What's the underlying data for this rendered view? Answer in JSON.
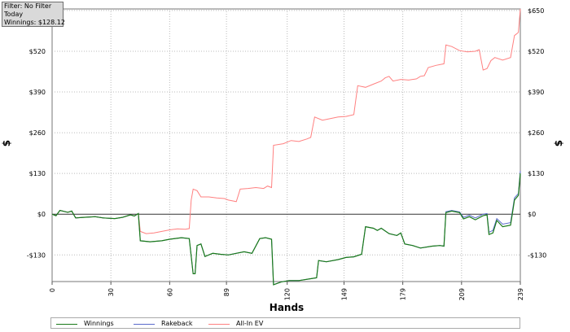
{
  "info_box": {
    "filter": "Filter: No Filter",
    "period": "Today",
    "winnings": "Winnings: $128.12"
  },
  "chart_data": {
    "type": "line",
    "xlabel": "Hands",
    "ylabel": "$",
    "xlim": [
      0,
      239
    ],
    "ylim": [
      -215,
      655
    ],
    "x_ticks": [
      0,
      30,
      60,
      89,
      120,
      149,
      179,
      209,
      239
    ],
    "y_ticks": [
      {
        "value": 650,
        "label": "$650"
      },
      {
        "value": 520,
        "label": "$520"
      },
      {
        "value": 390,
        "label": "$390"
      },
      {
        "value": 260,
        "label": "$260"
      },
      {
        "value": 130,
        "label": "$130"
      },
      {
        "value": 0,
        "label": "$0"
      },
      {
        "value": -130,
        "label": "-$130"
      }
    ],
    "grid": true,
    "legend_position": "bottom",
    "series": [
      {
        "name": "Winnings",
        "color": "#1a7a1a",
        "points": [
          [
            0,
            0
          ],
          [
            2,
            -5
          ],
          [
            4,
            12
          ],
          [
            8,
            6
          ],
          [
            10,
            10
          ],
          [
            12,
            -12
          ],
          [
            16,
            -10
          ],
          [
            22,
            -8
          ],
          [
            26,
            -12
          ],
          [
            32,
            -14
          ],
          [
            36,
            -10
          ],
          [
            40,
            -2
          ],
          [
            42,
            -6
          ],
          [
            44,
            2
          ],
          [
            45,
            -85
          ],
          [
            50,
            -88
          ],
          [
            56,
            -85
          ],
          [
            60,
            -80
          ],
          [
            66,
            -75
          ],
          [
            70,
            -78
          ],
          [
            72,
            -190
          ],
          [
            73,
            -190
          ],
          [
            74,
            -100
          ],
          [
            76,
            -95
          ],
          [
            78,
            -135
          ],
          [
            82,
            -125
          ],
          [
            86,
            -128
          ],
          [
            90,
            -130
          ],
          [
            94,
            -125
          ],
          [
            98,
            -120
          ],
          [
            102,
            -125
          ],
          [
            106,
            -78
          ],
          [
            109,
            -75
          ],
          [
            112,
            -80
          ],
          [
            113,
            -225
          ],
          [
            117,
            -216
          ],
          [
            121,
            -212
          ],
          [
            126,
            -212
          ],
          [
            132,
            -206
          ],
          [
            135,
            -203
          ],
          [
            136,
            -148
          ],
          [
            140,
            -152
          ],
          [
            146,
            -145
          ],
          [
            150,
            -138
          ],
          [
            154,
            -136
          ],
          [
            156,
            -132
          ],
          [
            158,
            -128
          ],
          [
            160,
            -40
          ],
          [
            164,
            -45
          ],
          [
            166,
            -52
          ],
          [
            168,
            -45
          ],
          [
            172,
            -62
          ],
          [
            176,
            -68
          ],
          [
            178,
            -60
          ],
          [
            180,
            -95
          ],
          [
            184,
            -100
          ],
          [
            188,
            -108
          ],
          [
            194,
            -102
          ],
          [
            198,
            -100
          ],
          [
            200,
            -102
          ],
          [
            201,
            5
          ],
          [
            204,
            10
          ],
          [
            208,
            5
          ],
          [
            210,
            -15
          ],
          [
            213,
            -8
          ],
          [
            216,
            -18
          ],
          [
            220,
            -5
          ],
          [
            222,
            -2
          ],
          [
            223,
            -65
          ],
          [
            225,
            -60
          ],
          [
            227,
            -20
          ],
          [
            230,
            -40
          ],
          [
            234,
            -35
          ],
          [
            236,
            45
          ],
          [
            238,
            60
          ],
          [
            239,
            130
          ]
        ]
      },
      {
        "name": "Rakeback",
        "color": "#5a6acc",
        "points": [
          [
            0,
            0
          ],
          [
            2,
            -5
          ],
          [
            4,
            12
          ],
          [
            8,
            6
          ],
          [
            10,
            10
          ],
          [
            12,
            -12
          ],
          [
            16,
            -10
          ],
          [
            22,
            -8
          ],
          [
            26,
            -12
          ],
          [
            32,
            -14
          ],
          [
            36,
            -10
          ],
          [
            40,
            -2
          ],
          [
            42,
            -6
          ],
          [
            44,
            2
          ],
          [
            45,
            -85
          ],
          [
            50,
            -88
          ],
          [
            56,
            -85
          ],
          [
            60,
            -80
          ],
          [
            66,
            -75
          ],
          [
            70,
            -78
          ],
          [
            72,
            -190
          ],
          [
            73,
            -190
          ],
          [
            74,
            -100
          ],
          [
            76,
            -95
          ],
          [
            78,
            -135
          ],
          [
            82,
            -125
          ],
          [
            86,
            -128
          ],
          [
            90,
            -130
          ],
          [
            94,
            -125
          ],
          [
            98,
            -120
          ],
          [
            102,
            -125
          ],
          [
            106,
            -78
          ],
          [
            109,
            -75
          ],
          [
            112,
            -80
          ],
          [
            113,
            -225
          ],
          [
            117,
            -216
          ],
          [
            121,
            -212
          ],
          [
            126,
            -212
          ],
          [
            132,
            -206
          ],
          [
            135,
            -203
          ],
          [
            136,
            -148
          ],
          [
            140,
            -152
          ],
          [
            146,
            -145
          ],
          [
            150,
            -138
          ],
          [
            154,
            -136
          ],
          [
            156,
            -132
          ],
          [
            158,
            -128
          ],
          [
            160,
            -40
          ],
          [
            164,
            -45
          ],
          [
            166,
            -52
          ],
          [
            168,
            -45
          ],
          [
            172,
            -62
          ],
          [
            176,
            -68
          ],
          [
            178,
            -60
          ],
          [
            180,
            -95
          ],
          [
            184,
            -100
          ],
          [
            188,
            -108
          ],
          [
            194,
            -102
          ],
          [
            198,
            -100
          ],
          [
            200,
            -102
          ],
          [
            201,
            8
          ],
          [
            204,
            12
          ],
          [
            208,
            7
          ],
          [
            210,
            -10
          ],
          [
            213,
            -3
          ],
          [
            216,
            -12
          ],
          [
            220,
            0
          ],
          [
            222,
            2
          ],
          [
            223,
            -58
          ],
          [
            225,
            -52
          ],
          [
            227,
            -14
          ],
          [
            230,
            -32
          ],
          [
            234,
            -27
          ],
          [
            236,
            52
          ],
          [
            238,
            66
          ],
          [
            239,
            138
          ]
        ]
      },
      {
        "name": "All-In EV",
        "color": "#ff8080",
        "points": [
          [
            0,
            0
          ],
          [
            2,
            -5
          ],
          [
            4,
            12
          ],
          [
            8,
            6
          ],
          [
            10,
            10
          ],
          [
            12,
            -12
          ],
          [
            16,
            -10
          ],
          [
            22,
            -8
          ],
          [
            26,
            -12
          ],
          [
            32,
            -14
          ],
          [
            36,
            -10
          ],
          [
            40,
            -2
          ],
          [
            42,
            -6
          ],
          [
            44,
            2
          ],
          [
            45,
            -55
          ],
          [
            48,
            -62
          ],
          [
            52,
            -60
          ],
          [
            56,
            -55
          ],
          [
            60,
            -50
          ],
          [
            64,
            -47
          ],
          [
            68,
            -48
          ],
          [
            70,
            -46
          ],
          [
            71,
            45
          ],
          [
            72,
            80
          ],
          [
            74,
            75
          ],
          [
            76,
            55
          ],
          [
            80,
            55
          ],
          [
            84,
            52
          ],
          [
            88,
            50
          ],
          [
            90,
            45
          ],
          [
            94,
            40
          ],
          [
            96,
            80
          ],
          [
            100,
            82
          ],
          [
            104,
            85
          ],
          [
            108,
            82
          ],
          [
            110,
            90
          ],
          [
            112,
            85
          ],
          [
            113,
            220
          ],
          [
            118,
            225
          ],
          [
            122,
            235
          ],
          [
            126,
            232
          ],
          [
            130,
            240
          ],
          [
            132,
            245
          ],
          [
            134,
            310
          ],
          [
            138,
            300
          ],
          [
            142,
            305
          ],
          [
            146,
            310
          ],
          [
            150,
            312
          ],
          [
            154,
            318
          ],
          [
            156,
            410
          ],
          [
            160,
            405
          ],
          [
            164,
            415
          ],
          [
            168,
            425
          ],
          [
            170,
            435
          ],
          [
            172,
            440
          ],
          [
            174,
            425
          ],
          [
            178,
            430
          ],
          [
            182,
            428
          ],
          [
            186,
            432
          ],
          [
            188,
            440
          ],
          [
            190,
            442
          ],
          [
            192,
            468
          ],
          [
            196,
            475
          ],
          [
            200,
            480
          ],
          [
            201,
            540
          ],
          [
            204,
            535
          ],
          [
            208,
            522
          ],
          [
            212,
            518
          ],
          [
            216,
            520
          ],
          [
            218,
            525
          ],
          [
            220,
            460
          ],
          [
            222,
            465
          ],
          [
            224,
            490
          ],
          [
            226,
            500
          ],
          [
            230,
            492
          ],
          [
            234,
            500
          ],
          [
            236,
            570
          ],
          [
            238,
            580
          ],
          [
            239,
            655
          ]
        ]
      }
    ]
  }
}
